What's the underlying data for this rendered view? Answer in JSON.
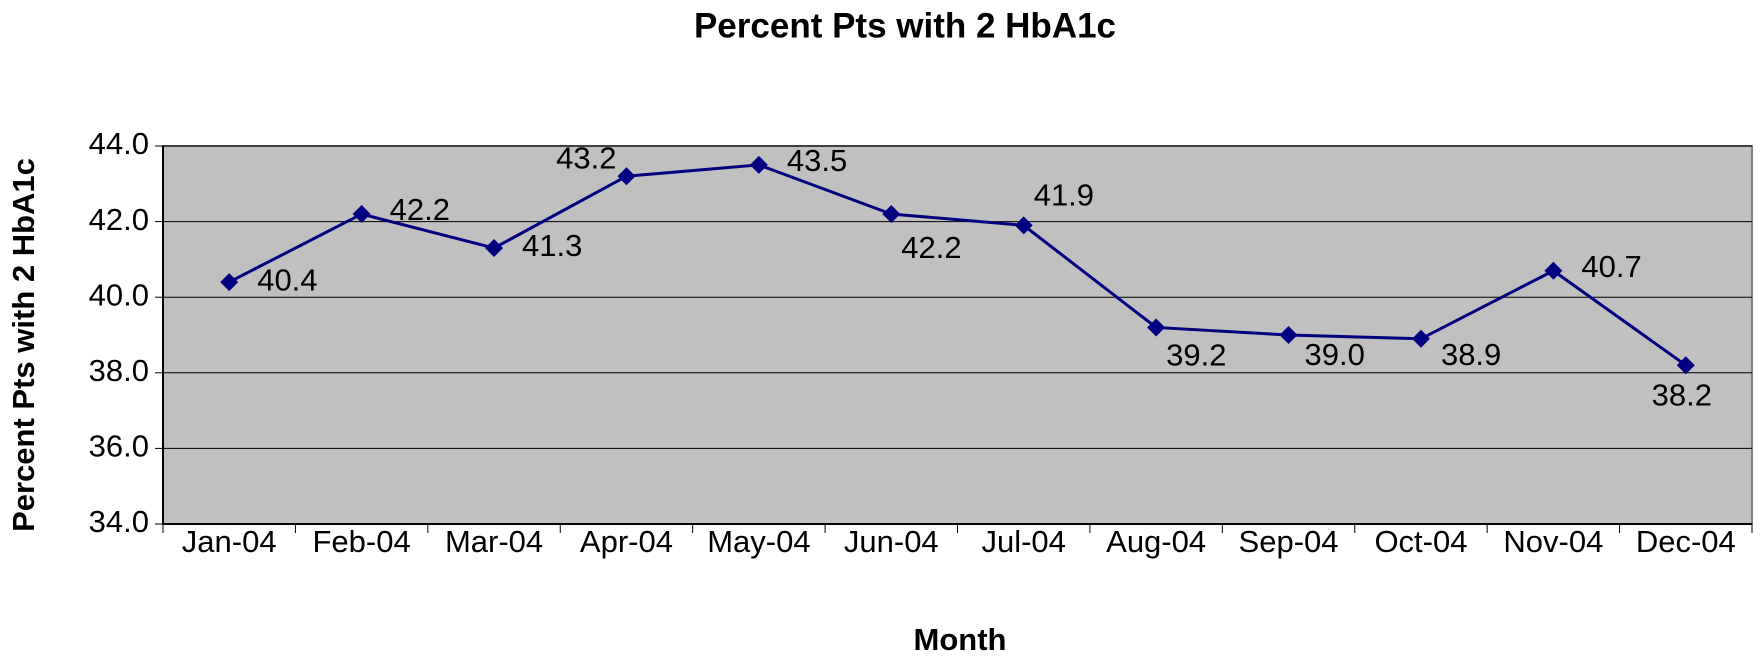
{
  "chart_data": {
    "type": "line",
    "title": "Percent Pts with 2 HbA1c",
    "x_label": "Month",
    "y_label": "Percent Pts with 2 HbA1c",
    "categories": [
      "Jan-04",
      "Feb-04",
      "Mar-04",
      "Apr-04",
      "May-04",
      "Jun-04",
      "Jul-04",
      "Aug-04",
      "Sep-04",
      "Oct-04",
      "Nov-04",
      "Dec-04"
    ],
    "series": [
      {
        "name": "Percent Pts with 2 HbA1c",
        "color": "#000080",
        "values": [
          40.4,
          42.2,
          41.3,
          43.2,
          43.5,
          42.2,
          41.9,
          39.2,
          39.0,
          38.9,
          40.7,
          38.2
        ],
        "value_labels": [
          "40.4",
          "42.2",
          "41.3",
          "43.2",
          "43.5",
          "42.2",
          "41.9",
          "39.2",
          "39.0",
          "38.9",
          "40.7",
          "38.2"
        ]
      }
    ],
    "ylim": [
      34,
      44
    ],
    "yticks": [
      {
        "value": 34,
        "label": "34.0"
      },
      {
        "value": 36,
        "label": "36.0"
      },
      {
        "value": 38,
        "label": "38.0"
      },
      {
        "value": 40,
        "label": "40.0"
      },
      {
        "value": 42,
        "label": "42.0"
      },
      {
        "value": 44,
        "label": "44.0"
      }
    ],
    "grid": true,
    "plot_background": "#c0c0c0"
  }
}
